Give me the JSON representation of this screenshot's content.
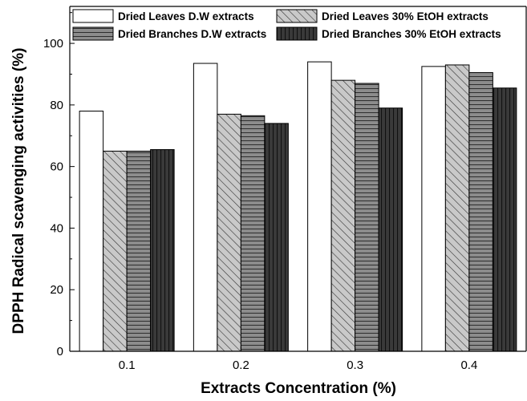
{
  "chart_data": {
    "type": "bar",
    "title": "",
    "xlabel": "Extracts Concentration (%)",
    "ylabel": "DPPH Radical scavenging activities (%)",
    "categories": [
      "0.1",
      "0.2",
      "0.3",
      "0.4"
    ],
    "ylim": [
      0,
      112
    ],
    "yticks": [
      "0",
      "20",
      "40",
      "60",
      "80",
      "100"
    ],
    "grid": false,
    "legend_position": "top",
    "series": [
      {
        "name": "Dried Leaves D.W extracts",
        "pattern": "white",
        "values": [
          78,
          93.5,
          94,
          92.5
        ]
      },
      {
        "name": "Dried Leaves 30% EtOH extracts",
        "pattern": "diagonal",
        "values": [
          65,
          77,
          88,
          93
        ]
      },
      {
        "name": "Dried Branches D.W extracts",
        "pattern": "horizontal",
        "values": [
          65,
          76.5,
          87,
          90.5
        ]
      },
      {
        "name": "Dried Branches 30% EtOH extracts",
        "pattern": "vertical",
        "values": [
          65.5,
          74,
          79,
          85.5
        ]
      }
    ]
  }
}
